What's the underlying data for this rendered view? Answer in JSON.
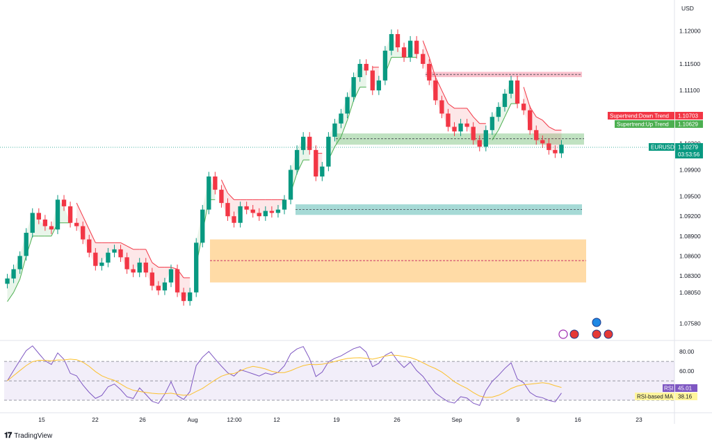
{
  "chart_data": {
    "type": "candlestick",
    "symbol": "EURUSD",
    "currency": "USD",
    "price_axis": {
      "ticks": [
        "1.12000",
        "1.11500",
        "1.11100",
        "1.10700",
        "1.10300",
        "1.09900",
        "1.09500",
        "1.09200",
        "1.08900",
        "1.08600",
        "1.08300",
        "1.08050",
        "1.07580"
      ],
      "range": [
        1.0745,
        1.1215
      ]
    },
    "time_axis": {
      "ticks": [
        "15",
        "22",
        "26",
        "Aug",
        "12:00",
        "12",
        "19",
        "26",
        "Sep",
        "9",
        "16",
        "23"
      ]
    },
    "ohlc_close_path": [
      1.0826,
      1.084,
      1.086,
      1.0895,
      1.0925,
      1.0915,
      1.0905,
      1.09,
      1.0945,
      1.0935,
      1.091,
      1.0905,
      1.0885,
      1.0865,
      1.0845,
      1.085,
      1.0865,
      1.087,
      1.0858,
      1.084,
      1.0835,
      1.085,
      1.0835,
      1.0815,
      1.0808,
      1.082,
      1.084,
      1.0805,
      1.0792,
      1.0805,
      1.088,
      1.093,
      1.098,
      1.096,
      1.094,
      1.092,
      1.091,
      1.0935,
      1.093,
      1.0925,
      1.092,
      1.0928,
      1.0925,
      1.093,
      1.0945,
      1.099,
      1.102,
      1.104,
      1.102,
      1.098,
      1.0995,
      1.104,
      1.106,
      1.1075,
      1.11,
      1.113,
      1.115,
      1.114,
      1.111,
      1.1125,
      1.117,
      1.1195,
      1.1175,
      1.116,
      1.1185,
      1.1165,
      1.115,
      1.1125,
      1.1095,
      1.1075,
      1.1055,
      1.1048,
      1.106,
      1.1055,
      1.1035,
      1.1025,
      1.105,
      1.107,
      1.1085,
      1.1105,
      1.1125,
      1.109,
      1.108,
      1.105,
      1.1035,
      1.103,
      1.102,
      1.1015,
      1.1028
    ],
    "supertrend": {
      "up_label": "Supertrend:Up Trend",
      "up_value": "1.10629",
      "down_label": "Supertrend:Down Trend",
      "down_value": "1.10703",
      "up_color": "#4caf50",
      "down_color": "#f23645"
    },
    "last_price": {
      "symbol": "EURUSD",
      "value": "1.10279",
      "countdown": "03:53:56",
      "color": "#089981"
    },
    "zones": [
      {
        "color": "#f7a8b8",
        "top": 1.1138,
        "bottom": 1.113,
        "mid": 1.1134
      },
      {
        "color": "#a5d6a7",
        "top": 1.1045,
        "bottom": 1.1028,
        "mid": 1.1037
      },
      {
        "color": "#80cbc4",
        "top": 1.0938,
        "bottom": 1.0922,
        "mid": 1.093
      },
      {
        "color": "#ffcc80",
        "top": 1.0885,
        "bottom": 1.082,
        "mid": 1.0853
      }
    ],
    "rsi": {
      "ticks": [
        "80.00",
        "60.00"
      ],
      "range": [
        20,
        88
      ],
      "upper": 70,
      "mid": 50,
      "lower": 30,
      "label": "RSI",
      "value": "45.01",
      "ma_label": "RSI-based MA",
      "ma_value": "38.16",
      "line_color": "#7e57c2",
      "ma_color": "#fbc02d"
    }
  },
  "footer": {
    "brand": "TradingView"
  }
}
